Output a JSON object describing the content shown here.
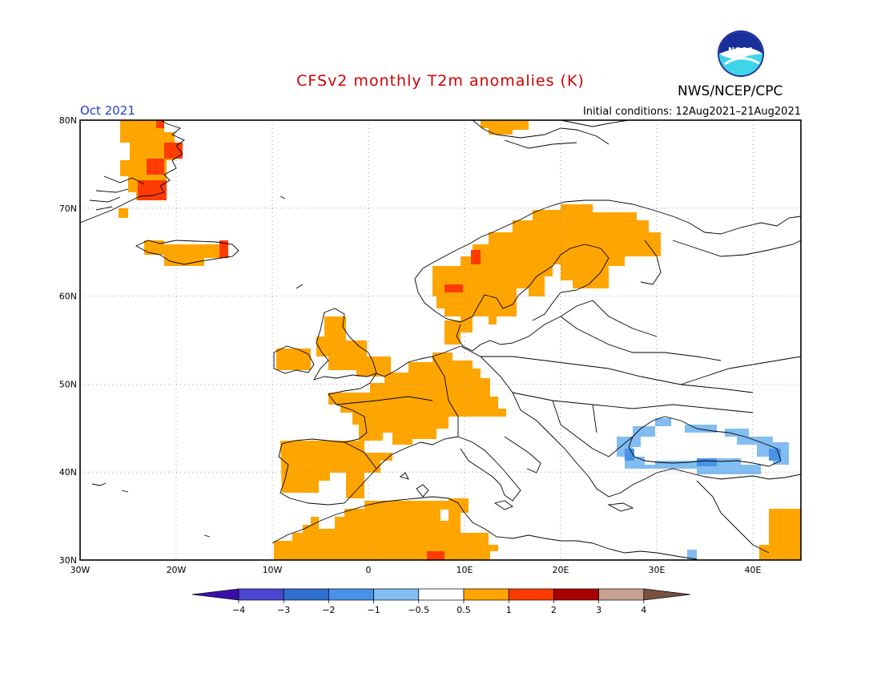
{
  "header": {
    "title": "CFSv2 monthly T2m anomalies (K)",
    "agency": "NWS/NCEP/CPC",
    "month": "Oct 2021",
    "initial_conditions": "Initial conditions: 12Aug2021–21Aug2021",
    "logo_text": "NOAA"
  },
  "map": {
    "lon_range": [
      -30,
      45
    ],
    "lat_range": [
      30,
      80
    ],
    "lat_labels": [
      "80N",
      "70N",
      "60N",
      "50N",
      "40N",
      "30N"
    ],
    "lon_labels": [
      "30W",
      "20W",
      "10W",
      "0",
      "10E",
      "20E",
      "30E",
      "40E"
    ]
  },
  "colorbar": {
    "labels": [
      "−4",
      "−3",
      "−2",
      "−1",
      "−0.5",
      "0.5",
      "1",
      "2",
      "3",
      "4"
    ],
    "colors": [
      "#3a10a8",
      "#4a46d0",
      "#2f6fd0",
      "#4a92e8",
      "#82bdf2",
      "#ffffff",
      "#ffa500",
      "#ff3b00",
      "#a80000",
      "#c8a090",
      "#7a5040"
    ]
  },
  "anomaly_colors": {
    "orange": "#ffa500",
    "red": "#ff3b00",
    "blue": "#82bdf2",
    "mid_blue": "#4a92e8"
  }
}
